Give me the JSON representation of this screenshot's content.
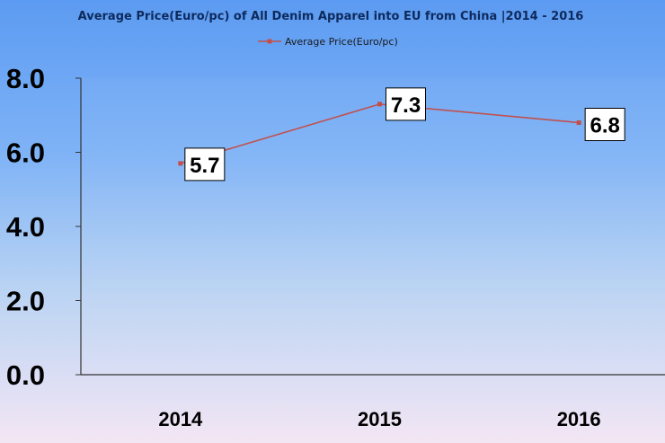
{
  "chart_data": {
    "type": "line",
    "title": "Average Price(Euro/pc) of All Denim Apparel into EU from China |2014 - 2016",
    "categories": [
      "2014",
      "2015",
      "2016"
    ],
    "series": [
      {
        "name": "Average Price(Euro/pc)",
        "values": [
          5.7,
          7.3,
          6.8
        ],
        "color": "#c0504d"
      }
    ],
    "data_labels": [
      "5.7",
      "7.3",
      "6.8"
    ],
    "y_ticks": [
      "0.0",
      "2.0",
      "4.0",
      "6.0",
      "8.0"
    ],
    "ylim": [
      0,
      8
    ],
    "legend_position": "top",
    "grid": false
  }
}
